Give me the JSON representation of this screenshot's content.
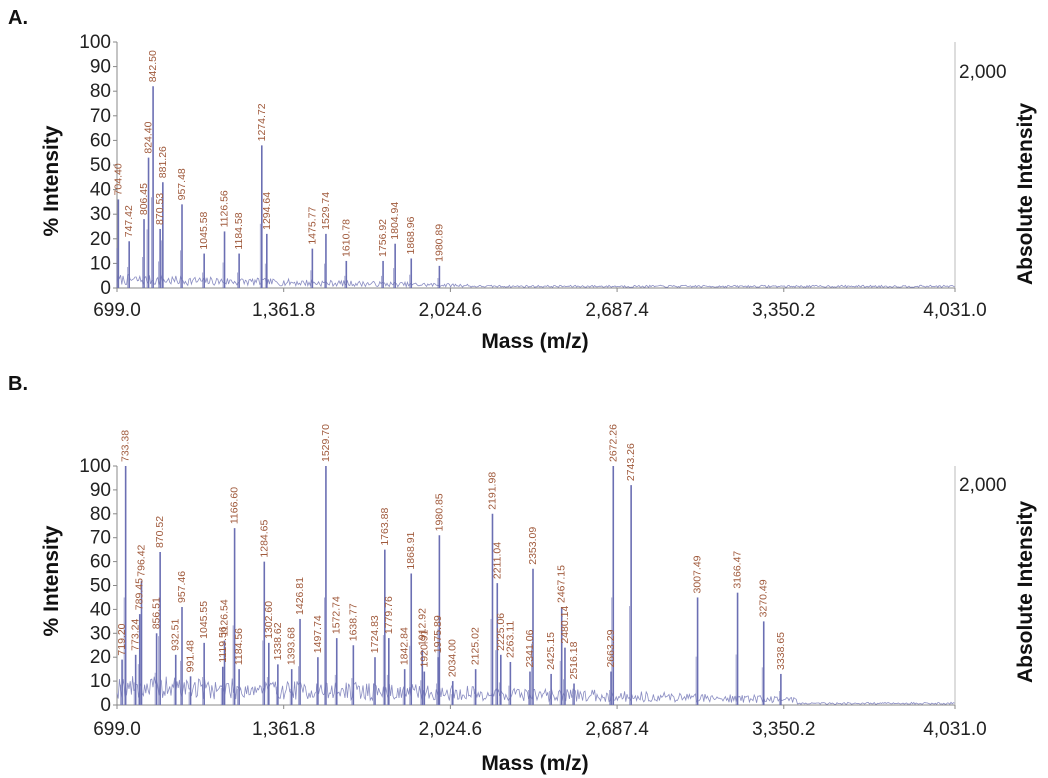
{
  "colors": {
    "trace": "#6b6fb3",
    "peak_label": "#a05a3c",
    "axis": "#888888",
    "text": "#111111"
  },
  "chart_data": [
    {
      "type": "line",
      "panel": "A.",
      "xlabel": "Mass (m/z)",
      "ylabel": "% Intensity",
      "y2label": "Absolute Intensity",
      "xlim": [
        699.0,
        4031.0
      ],
      "ylim": [
        0,
        100
      ],
      "x_ticks": [
        "699.0",
        "1,361.8",
        "2,024.6",
        "2,687.4",
        "3,350.2",
        "4,031.0"
      ],
      "y_ticks": [
        "0",
        "10",
        "20",
        "30",
        "40",
        "50",
        "60",
        "70",
        "80",
        "90",
        "100"
      ],
      "y2_tick": "2,000",
      "grid": false,
      "peaks": [
        {
          "mz": 704.4,
          "label": "704.40",
          "y": 36
        },
        {
          "mz": 747.42,
          "label": "747.42",
          "y": 19
        },
        {
          "mz": 806.45,
          "label": "806.45",
          "y": 28
        },
        {
          "mz": 824.4,
          "label": "824.40",
          "y": 53
        },
        {
          "mz": 842.5,
          "label": "842.50",
          "y": 82
        },
        {
          "mz": 870.53,
          "label": "870.53",
          "y": 24
        },
        {
          "mz": 881.26,
          "label": "881.26",
          "y": 43
        },
        {
          "mz": 957.48,
          "label": "957.48",
          "y": 34
        },
        {
          "mz": 1045.58,
          "label": "1045.58",
          "y": 14
        },
        {
          "mz": 1126.56,
          "label": "1126.56",
          "y": 23
        },
        {
          "mz": 1184.58,
          "label": "1184.58",
          "y": 14
        },
        {
          "mz": 1274.72,
          "label": "1274.72",
          "y": 58
        },
        {
          "mz": 1294.64,
          "label": "1294.64",
          "y": 22
        },
        {
          "mz": 1475.77,
          "label": "1475.77",
          "y": 16
        },
        {
          "mz": 1529.74,
          "label": "1529.74",
          "y": 22
        },
        {
          "mz": 1610.78,
          "label": "1610.78",
          "y": 11
        },
        {
          "mz": 1756.92,
          "label": "1756.92",
          "y": 11
        },
        {
          "mz": 1804.94,
          "label": "1804.94",
          "y": 18
        },
        {
          "mz": 1868.96,
          "label": "1868.96",
          "y": 12
        },
        {
          "mz": 1980.89,
          "label": "1980.89",
          "y": 9
        }
      ]
    },
    {
      "type": "line",
      "panel": "B.",
      "xlabel": "Mass (m/z)",
      "ylabel": "% Intensity",
      "y2label": "Absolute Intensity",
      "xlim": [
        699.0,
        4031.0
      ],
      "ylim": [
        0,
        100
      ],
      "x_ticks": [
        "699.0",
        "1,361.8",
        "2,024.6",
        "2,687.4",
        "3,350.2",
        "4,031.0"
      ],
      "y_ticks": [
        "0",
        "10",
        "20",
        "30",
        "40",
        "50",
        "60",
        "70",
        "80",
        "90",
        "100"
      ],
      "y2_tick": "2,000",
      "grid": false,
      "peaks": [
        {
          "mz": 719.2,
          "label": "719.20",
          "y": 19
        },
        {
          "mz": 733.38,
          "label": "733.38",
          "y": 100
        },
        {
          "mz": 773.24,
          "label": "773.24",
          "y": 21
        },
        {
          "mz": 789.45,
          "label": "789.45",
          "y": 38
        },
        {
          "mz": 796.42,
          "label": "796.42",
          "y": 52
        },
        {
          "mz": 856.51,
          "label": "856.51",
          "y": 30
        },
        {
          "mz": 870.52,
          "label": "870.52",
          "y": 64
        },
        {
          "mz": 932.51,
          "label": "932.51",
          "y": 21
        },
        {
          "mz": 957.46,
          "label": "957.46",
          "y": 41
        },
        {
          "mz": 991.48,
          "label": "991.48",
          "y": 12
        },
        {
          "mz": 1045.55,
          "label": "1045.55",
          "y": 26
        },
        {
          "mz": 1119.56,
          "label": "1119.56",
          "y": 16
        },
        {
          "mz": 1126.54,
          "label": "1126.54",
          "y": 27
        },
        {
          "mz": 1166.6,
          "label": "1166.60",
          "y": 74
        },
        {
          "mz": 1184.56,
          "label": "1184.56",
          "y": 15
        },
        {
          "mz": 1284.65,
          "label": "1284.65",
          "y": 60
        },
        {
          "mz": 1302.6,
          "label": "1302.60",
          "y": 26
        },
        {
          "mz": 1338.62,
          "label": "1338.62",
          "y": 17
        },
        {
          "mz": 1393.68,
          "label": "1393.68",
          "y": 15
        },
        {
          "mz": 1426.81,
          "label": "1426.81",
          "y": 36
        },
        {
          "mz": 1497.74,
          "label": "1497.74",
          "y": 20
        },
        {
          "mz": 1529.7,
          "label": "1529.70",
          "y": 100
        },
        {
          "mz": 1572.74,
          "label": "1572.74",
          "y": 28
        },
        {
          "mz": 1638.77,
          "label": "1638.77",
          "y": 25
        },
        {
          "mz": 1724.83,
          "label": "1724.83",
          "y": 20
        },
        {
          "mz": 1763.88,
          "label": "1763.88",
          "y": 65
        },
        {
          "mz": 1779.76,
          "label": "1779.76",
          "y": 28
        },
        {
          "mz": 1842.84,
          "label": "1842.84",
          "y": 15
        },
        {
          "mz": 1868.91,
          "label": "1868.91",
          "y": 55
        },
        {
          "mz": 1912.92,
          "label": "1912.92",
          "y": 23
        },
        {
          "mz": 1920.91,
          "label": "1920.91",
          "y": 14
        },
        {
          "mz": 1975.89,
          "label": "1975.89",
          "y": 20
        },
        {
          "mz": 1980.85,
          "label": "1980.85",
          "y": 71
        },
        {
          "mz": 2034.0,
          "label": "2034.00",
          "y": 10
        },
        {
          "mz": 2125.02,
          "label": "2125.02",
          "y": 15
        },
        {
          "mz": 2191.98,
          "label": "2191.98",
          "y": 80
        },
        {
          "mz": 2211.04,
          "label": "2211.04",
          "y": 51
        },
        {
          "mz": 2225.06,
          "label": "2225.06",
          "y": 21
        },
        {
          "mz": 2263.11,
          "label": "2263.11",
          "y": 18
        },
        {
          "mz": 2341.06,
          "label": "2341.06",
          "y": 14
        },
        {
          "mz": 2353.09,
          "label": "2353.09",
          "y": 57
        },
        {
          "mz": 2425.15,
          "label": "2425.15",
          "y": 13
        },
        {
          "mz": 2467.15,
          "label": "2467.15",
          "y": 41
        },
        {
          "mz": 2480.14,
          "label": "2480.14",
          "y": 24
        },
        {
          "mz": 2516.18,
          "label": "2516.18",
          "y": 9
        },
        {
          "mz": 2663.29,
          "label": "2663.29",
          "y": 14
        },
        {
          "mz": 2672.26,
          "label": "2672.26",
          "y": 100
        },
        {
          "mz": 2743.26,
          "label": "2743.26",
          "y": 92
        },
        {
          "mz": 3007.49,
          "label": "3007.49",
          "y": 45
        },
        {
          "mz": 3166.47,
          "label": "3166.47",
          "y": 47
        },
        {
          "mz": 3270.49,
          "label": "3270.49",
          "y": 35
        },
        {
          "mz": 3338.65,
          "label": "3338.65",
          "y": 13
        }
      ]
    }
  ]
}
